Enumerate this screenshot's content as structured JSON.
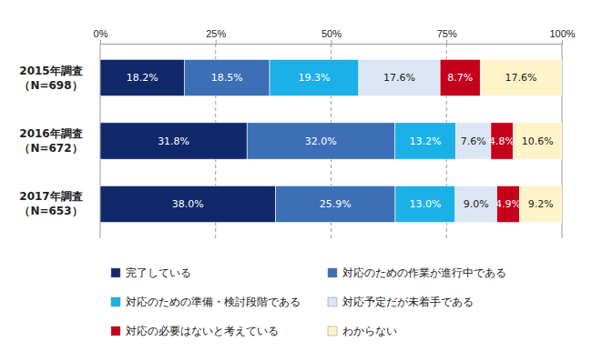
{
  "chart_data": {
    "type": "bar",
    "orientation": "horizontal",
    "stacked": true,
    "data_labels": true,
    "grid": true,
    "legend": "bottom",
    "categories": [
      "2015年調査\n（N=698）",
      "2016年調査\n（N=672）",
      "2017年調査\n（N=653）"
    ],
    "xlim": [
      0,
      100
    ],
    "xticks": [
      {
        "value": 0,
        "label": "0%"
      },
      {
        "value": 25,
        "label": "25%"
      },
      {
        "value": 50,
        "label": "50%"
      },
      {
        "value": 75,
        "label": "75%"
      },
      {
        "value": 100,
        "label": "100%"
      }
    ],
    "series": [
      {
        "name": "完了している",
        "color": "#10296b",
        "values": [
          18.2,
          31.8,
          38.0
        ],
        "value_labels": [
          "18.2%",
          "31.8%",
          "38.0%"
        ]
      },
      {
        "name": "対応のための作業が進行中である",
        "color": "#3d6fb6",
        "values": [
          18.5,
          32.0,
          25.9
        ],
        "value_labels": [
          "18.5%",
          "32.0%",
          "25.9%"
        ]
      },
      {
        "name": "対応のための準備・検討段階である",
        "color": "#1cb0e8",
        "values": [
          19.3,
          13.2,
          13.0
        ],
        "value_labels": [
          "19.3%",
          "13.2%",
          "13.0%"
        ]
      },
      {
        "name": "対応予定だが未着手である",
        "color": "#dce5f3",
        "values": [
          17.6,
          7.6,
          9.0
        ],
        "value_labels": [
          "17.6%",
          "7.6%",
          "9.0%"
        ]
      },
      {
        "name": "対応の必要はないと考えている",
        "color": "#c4001a",
        "values": [
          8.7,
          4.8,
          4.9
        ],
        "value_labels": [
          "8.7%",
          "4.8%",
          "4.9%"
        ]
      },
      {
        "name": "わからない",
        "color": "#fff3c9",
        "values": [
          17.6,
          10.6,
          9.2
        ],
        "value_labels": [
          "17.6%",
          "10.6%",
          "9.2%"
        ]
      }
    ]
  }
}
